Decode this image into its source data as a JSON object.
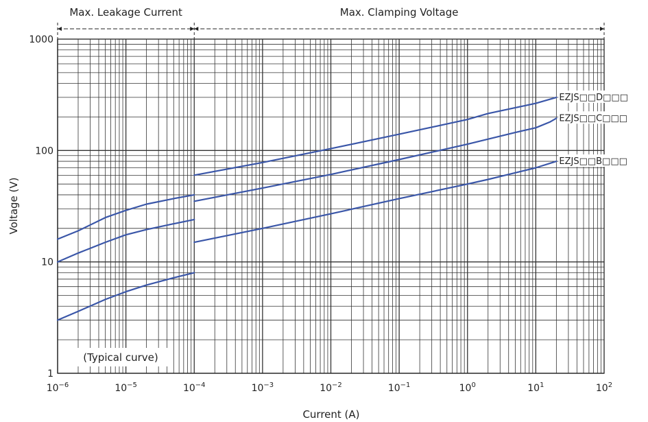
{
  "chart_data": {
    "type": "line",
    "xlabel": "Current (A)",
    "ylabel": "Voltage (V)",
    "x_scale": "log",
    "y_scale": "log",
    "xlim": [
      1e-06,
      100
    ],
    "ylim": [
      1,
      1000
    ],
    "grid": true,
    "x_ticks": [
      {
        "value": 1e-06,
        "base": "10",
        "exp": "−6"
      },
      {
        "value": 1e-05,
        "base": "10",
        "exp": "−5"
      },
      {
        "value": 0.0001,
        "base": "10",
        "exp": "−4"
      },
      {
        "value": 0.001,
        "base": "10",
        "exp": "−3"
      },
      {
        "value": 0.01,
        "base": "10",
        "exp": "−2"
      },
      {
        "value": 0.1,
        "base": "10",
        "exp": "−1"
      },
      {
        "value": 1,
        "base": "10",
        "exp": "0"
      },
      {
        "value": 10,
        "base": "10",
        "exp": "1"
      },
      {
        "value": 100,
        "base": "10",
        "exp": "2"
      }
    ],
    "y_ticks": [
      {
        "value": 1,
        "label": "1"
      },
      {
        "value": 10,
        "label": "10"
      },
      {
        "value": 100,
        "label": "100"
      },
      {
        "value": 1000,
        "label": "1000"
      }
    ],
    "regions": [
      {
        "label": "Max. Leakage Current",
        "from": 1e-06,
        "to": 0.0001
      },
      {
        "label": "Max. Clamping Voltage",
        "from": 0.0001,
        "to": 100
      }
    ],
    "annotation": "(Typical curve)",
    "line_color": "#3a56a8",
    "series": [
      {
        "name": "EZJS□□D□□□",
        "leakage": [
          [
            1e-06,
            16
          ],
          [
            2e-06,
            19
          ],
          [
            5e-06,
            25
          ],
          [
            1e-05,
            29
          ],
          [
            2e-05,
            33
          ],
          [
            5e-05,
            37
          ],
          [
            0.0001,
            40
          ]
        ],
        "clamping": [
          [
            0.0001,
            60
          ],
          [
            0.001,
            78
          ],
          [
            0.01,
            104
          ],
          [
            0.1,
            140
          ],
          [
            1,
            190
          ],
          [
            2,
            215
          ],
          [
            10,
            265
          ],
          [
            20,
            300
          ]
        ]
      },
      {
        "name": "EZJS□□C□□□",
        "leakage": [
          [
            1e-06,
            10
          ],
          [
            2e-06,
            12
          ],
          [
            5e-06,
            15
          ],
          [
            1e-05,
            17.5
          ],
          [
            2e-05,
            19.5
          ],
          [
            5e-05,
            22
          ],
          [
            0.0001,
            24
          ]
        ],
        "clamping": [
          [
            0.0001,
            35
          ],
          [
            0.001,
            46
          ],
          [
            0.01,
            61
          ],
          [
            0.1,
            83
          ],
          [
            1,
            114
          ],
          [
            5,
            145
          ],
          [
            10,
            160
          ],
          [
            16,
            180
          ],
          [
            20,
            195
          ]
        ]
      },
      {
        "name": "EZJS□□B□□□",
        "leakage": [
          [
            1e-06,
            3
          ],
          [
            2e-06,
            3.6
          ],
          [
            5e-06,
            4.6
          ],
          [
            1e-05,
            5.4
          ],
          [
            2e-05,
            6.2
          ],
          [
            5e-05,
            7.2
          ],
          [
            0.0001,
            8
          ]
        ],
        "clamping": [
          [
            0.0001,
            15
          ],
          [
            0.001,
            20
          ],
          [
            0.01,
            27
          ],
          [
            0.1,
            37
          ],
          [
            1,
            50
          ],
          [
            2,
            55
          ],
          [
            10,
            70
          ],
          [
            20,
            80
          ]
        ]
      }
    ]
  }
}
